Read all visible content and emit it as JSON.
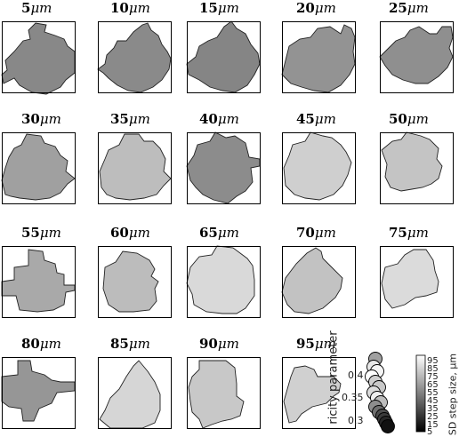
{
  "panels": [
    {
      "label_num": "5",
      "unit": "μm",
      "fill": "#888888"
    },
    {
      "label_num": "10",
      "unit": "μm",
      "fill": "#8a8a8a"
    },
    {
      "label_num": "15",
      "unit": "μm",
      "fill": "#858585"
    },
    {
      "label_num": "20",
      "unit": "μm",
      "fill": "#939393"
    },
    {
      "label_num": "25",
      "unit": "μm",
      "fill": "#8f8f8f"
    },
    {
      "label_num": "30",
      "unit": "μm",
      "fill": "#a0a0a0"
    },
    {
      "label_num": "35",
      "unit": "μm",
      "fill": "#bdbdbd"
    },
    {
      "label_num": "40",
      "unit": "μm",
      "fill": "#8c8c8c"
    },
    {
      "label_num": "45",
      "unit": "μm",
      "fill": "#cfcfcf"
    },
    {
      "label_num": "50",
      "unit": "μm",
      "fill": "#c4c4c4"
    },
    {
      "label_num": "55",
      "unit": "μm",
      "fill": "#a9a9a9"
    },
    {
      "label_num": "60",
      "unit": "μm",
      "fill": "#bcbcbc"
    },
    {
      "label_num": "65",
      "unit": "μm",
      "fill": "#d9d9d9"
    },
    {
      "label_num": "70",
      "unit": "μm",
      "fill": "#c2c2c2"
    },
    {
      "label_num": "75",
      "unit": "μm",
      "fill": "#dbdbdb"
    },
    {
      "label_num": "80",
      "unit": "μm",
      "fill": "#969696"
    },
    {
      "label_num": "85",
      "unit": "μm",
      "fill": "#d6d6d6"
    },
    {
      "label_num": "90",
      "unit": "μm",
      "fill": "#c8c8c8"
    },
    {
      "label_num": "95",
      "unit": "μm",
      "fill": "#d0d0d0"
    }
  ],
  "inset": {
    "ylabel": "ricity parameter",
    "yticks": [
      "0.4",
      "0.35",
      "0.3"
    ]
  },
  "colorbar": {
    "label": "SD step size, μm",
    "ticks": [
      "95",
      "85",
      "75",
      "65",
      "55",
      "45",
      "35",
      "25",
      "15",
      "5"
    ]
  }
}
